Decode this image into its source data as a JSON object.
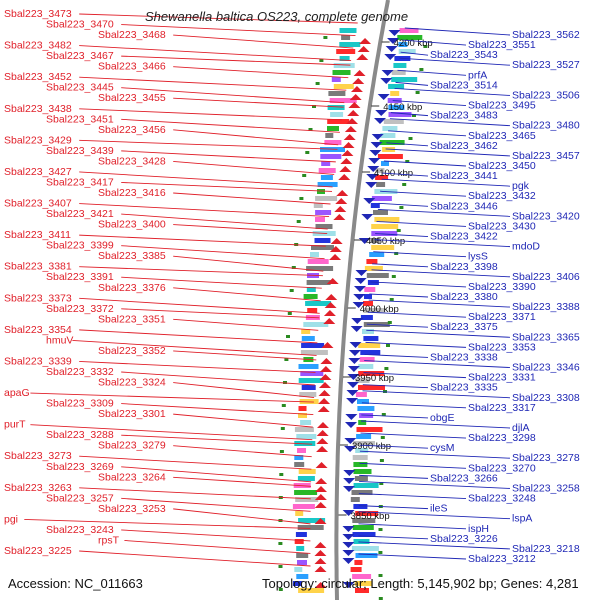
{
  "title": "Shewanella baltica OS223, complete genome",
  "accession": "Accession: NC_011663",
  "topology": "Topology: circular; Length: 5,145,902 bp; Genes: 4,281",
  "colors": {
    "forward": "#e0202a",
    "reverse": "#1f27b5",
    "backbone": "#8a8a8a",
    "tick": "#2a8a20"
  },
  "kbp_ticks": [
    "4200 kbp",
    "4150 kbp",
    "4100 kbp",
    "4050 kbp",
    "4000 kbp",
    "3950 kbp",
    "3900 kbp",
    "3850 kbp"
  ],
  "left_labels": [
    "Sbal223_3473",
    "Sbal223_3470",
    "Sbal223_3468",
    "Sbal223_3482",
    "Sbal223_3467",
    "Sbal223_3466",
    "Sbal223_3452",
    "Sbal223_3445",
    "Sbal223_3455",
    "Sbal223_3438",
    "Sbal223_3451",
    "Sbal223_3456",
    "Sbal223_3429",
    "Sbal223_3439",
    "Sbal223_3428",
    "Sbal223_3427",
    "Sbal223_3417",
    "Sbal223_3416",
    "Sbal223_3407",
    "Sbal223_3421",
    "Sbal223_3400",
    "Sbal223_3411",
    "Sbal223_3399",
    "Sbal223_3385",
    "Sbal223_3381",
    "Sbal223_3391",
    "Sbal223_3376",
    "Sbal223_3373",
    "Sbal223_3372",
    "Sbal223_3351",
    "Sbal223_3354",
    "hmuV",
    "Sbal223_3352",
    "Sbal223_3339",
    "Sbal223_3332",
    "Sbal223_3324",
    "apaG",
    "Sbal223_3309",
    "Sbal223_3301",
    "purT",
    "Sbal223_3288",
    "Sbal223_3279",
    "Sbal223_3273",
    "Sbal223_3269",
    "Sbal223_3264",
    "Sbal223_3263",
    "Sbal223_3257",
    "Sbal223_3253",
    "pgi",
    "Sbal223_3243",
    "rpsT",
    "Sbal223_3225"
  ],
  "right_labels": [
    "Sbal223_3562",
    "Sbal223_3551",
    "Sbal223_3543",
    "Sbal223_3527",
    "prfA",
    "Sbal223_3514",
    "Sbal223_3506",
    "Sbal223_3495",
    "Sbal223_3483",
    "Sbal223_3480",
    "Sbal223_3465",
    "Sbal223_3462",
    "Sbal223_3457",
    "Sbal223_3450",
    "Sbal223_3441",
    "pgk",
    "Sbal223_3432",
    "Sbal223_3446",
    "Sbal223_3420",
    "Sbal223_3430",
    "Sbal223_3422",
    "mdoD",
    "lysS",
    "Sbal223_3398",
    "Sbal223_3406",
    "Sbal223_3390",
    "Sbal223_3380",
    "Sbal223_3388",
    "Sbal223_3371",
    "Sbal223_3375",
    "Sbal223_3365",
    "Sbal223_3353",
    "Sbal223_3338",
    "Sbal223_3346",
    "Sbal223_3331",
    "Sbal223_3335",
    "Sbal223_3308",
    "Sbal223_3317",
    "obgE",
    "djlA",
    "Sbal223_3298",
    "cysM",
    "Sbal223_3278",
    "Sbal223_3270",
    "Sbal223_3266",
    "Sbal223_3258",
    "Sbal223_3248",
    "ileS",
    "lspA",
    "ispH",
    "Sbal223_3226",
    "Sbal223_3218",
    "Sbal223_3212"
  ]
}
